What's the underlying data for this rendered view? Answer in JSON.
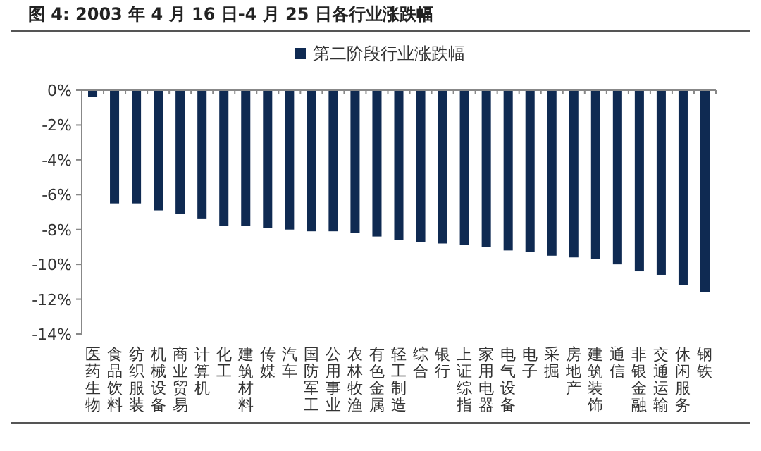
{
  "chart_data": {
    "type": "bar",
    "title": "图 4: 2003 年 4 月 16 日-4 月 25 日各行业涨跌幅",
    "categories": [
      "医药生物",
      "食品饮料",
      "纺织服装",
      "机械设备",
      "商业贸易",
      "计算机",
      "化工",
      "建筑材料",
      "传媒",
      "汽车",
      "国防军工",
      "公用事业",
      "农林牧渔",
      "有色金属",
      "轻工制造",
      "综合",
      "银行",
      "上证综指",
      "家用电器",
      "电气设备",
      "电子",
      "采掘",
      "房地产",
      "建筑装饰",
      "通信",
      "非银金融",
      "交通运输",
      "休闲服务",
      "钢铁"
    ],
    "series": [
      {
        "name": "第二阶段行业涨跌幅",
        "color": "#0f2a52",
        "values": [
          -0.4,
          -6.5,
          -6.5,
          -6.9,
          -7.1,
          -7.4,
          -7.8,
          -7.8,
          -7.9,
          -8.0,
          -8.1,
          -8.1,
          -8.2,
          -8.4,
          -8.6,
          -8.7,
          -8.8,
          -8.9,
          -9.0,
          -9.2,
          -9.3,
          -9.5,
          -9.6,
          -9.7,
          -10.0,
          -10.4,
          -10.6,
          -11.2,
          -11.6
        ]
      }
    ],
    "ylim": [
      -14,
      0
    ],
    "yticks": [
      {
        "value": 0,
        "label": "0%"
      },
      {
        "value": -2,
        "label": "-2%"
      },
      {
        "value": -4,
        "label": "-4%"
      },
      {
        "value": -6,
        "label": "-6%"
      },
      {
        "value": -8,
        "label": "-8%"
      },
      {
        "value": -10,
        "label": "-10%"
      },
      {
        "value": -12,
        "label": "-12%"
      },
      {
        "value": -14,
        "label": "-14%"
      }
    ],
    "legend": "top"
  }
}
